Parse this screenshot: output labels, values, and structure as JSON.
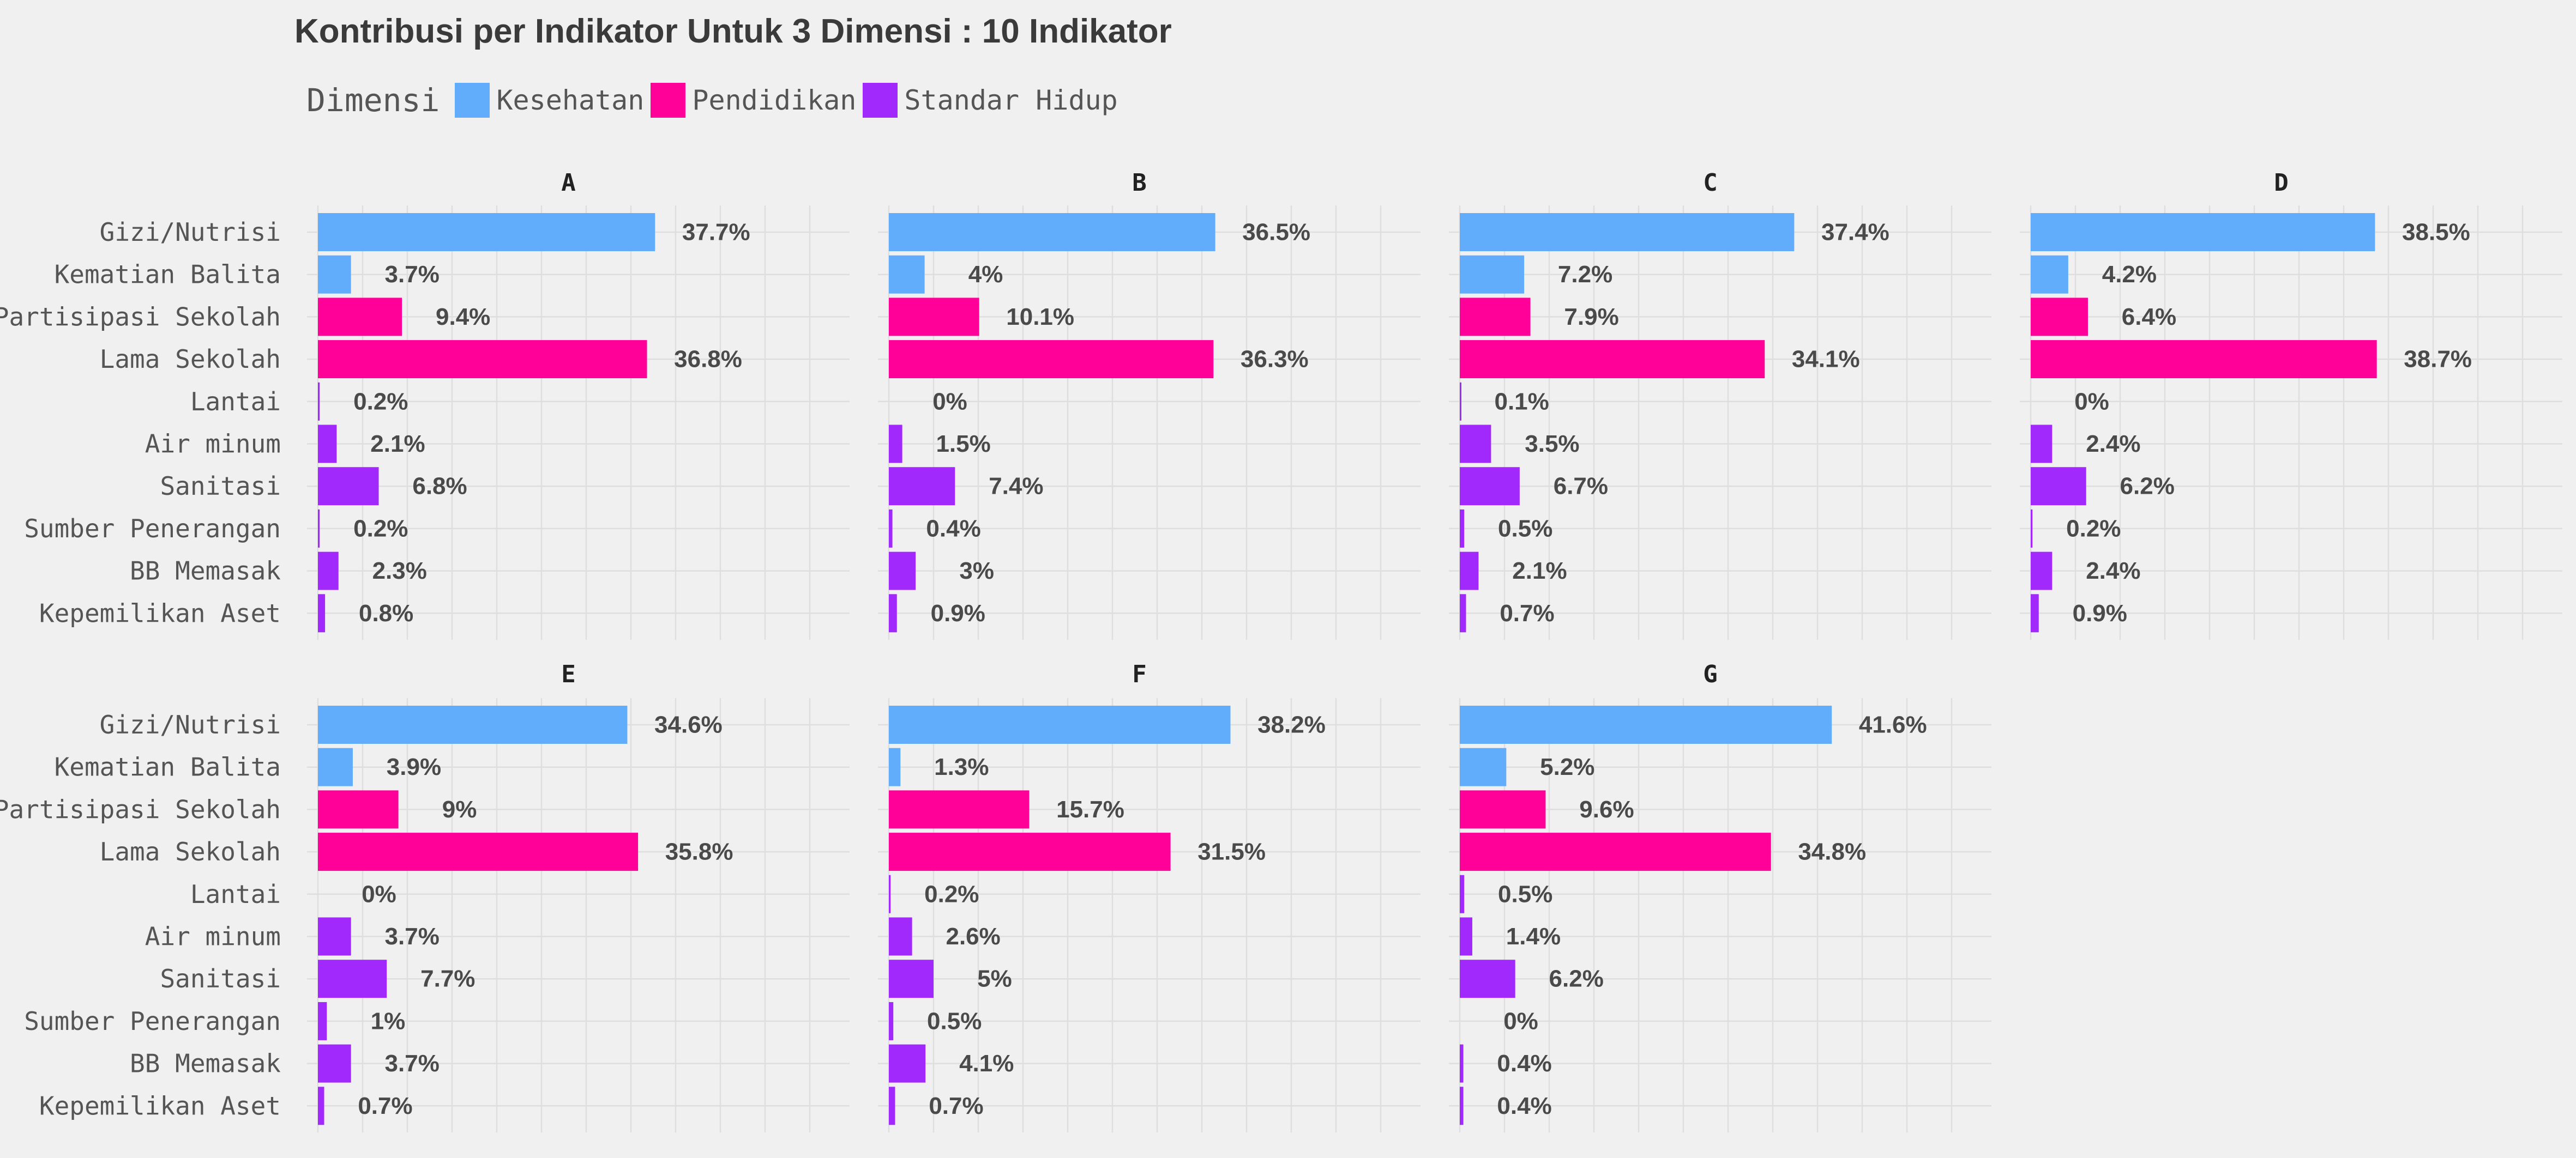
{
  "chart_data": {
    "type": "bar",
    "orientation": "horizontal",
    "title": "Kontribusi per Indikator Untuk 3 Dimensi : 10 Indikator",
    "legend": {
      "title": "Dimensi",
      "placement": "top-left",
      "items": [
        {
          "name": "Kesehatan",
          "color": "#62acfc"
        },
        {
          "name": "Pendidikan",
          "color": "#ff0099"
        },
        {
          "name": "Standar Hidup",
          "color": "#a229fb"
        }
      ]
    },
    "categories": [
      "Gizi/Nutrisi",
      "Kematian Balita",
      "Partisipasi Sekolah",
      "Lama Sekolah",
      "Lantai",
      "Air minum",
      "Sanitasi",
      "Sumber Penerangan",
      "BB Memasak",
      "Kepemilikan Aset"
    ],
    "category_dimension": [
      "Kesehatan",
      "Kesehatan",
      "Pendidikan",
      "Pendidikan",
      "Standar Hidup",
      "Standar Hidup",
      "Standar Hidup",
      "Standar Hidup",
      "Standar Hidup",
      "Standar Hidup"
    ],
    "grid": true,
    "xlim": [
      0,
      60
    ],
    "value_suffix": "%",
    "facets": [
      {
        "name": "A",
        "values": [
          37.7,
          3.7,
          9.4,
          36.8,
          0.2,
          2.1,
          6.8,
          0.2,
          2.3,
          0.8
        ]
      },
      {
        "name": "B",
        "values": [
          36.5,
          4,
          10.1,
          36.3,
          0,
          1.5,
          7.4,
          0.4,
          3,
          0.9
        ]
      },
      {
        "name": "C",
        "values": [
          37.4,
          7.2,
          7.9,
          34.1,
          0.1,
          3.5,
          6.7,
          0.5,
          2.1,
          0.7
        ]
      },
      {
        "name": "D",
        "values": [
          38.5,
          4.2,
          6.4,
          38.7,
          0,
          2.4,
          6.2,
          0.2,
          2.4,
          0.9
        ]
      },
      {
        "name": "E",
        "values": [
          34.6,
          3.9,
          9,
          35.8,
          0,
          3.7,
          7.7,
          1,
          3.7,
          0.7
        ]
      },
      {
        "name": "F",
        "values": [
          38.2,
          1.3,
          15.7,
          31.5,
          0.2,
          2.6,
          5,
          0.5,
          4.1,
          0.7
        ]
      },
      {
        "name": "G",
        "values": [
          41.6,
          5.2,
          9.6,
          34.8,
          0.5,
          1.4,
          6.2,
          0,
          0.4,
          0.4
        ]
      }
    ]
  }
}
